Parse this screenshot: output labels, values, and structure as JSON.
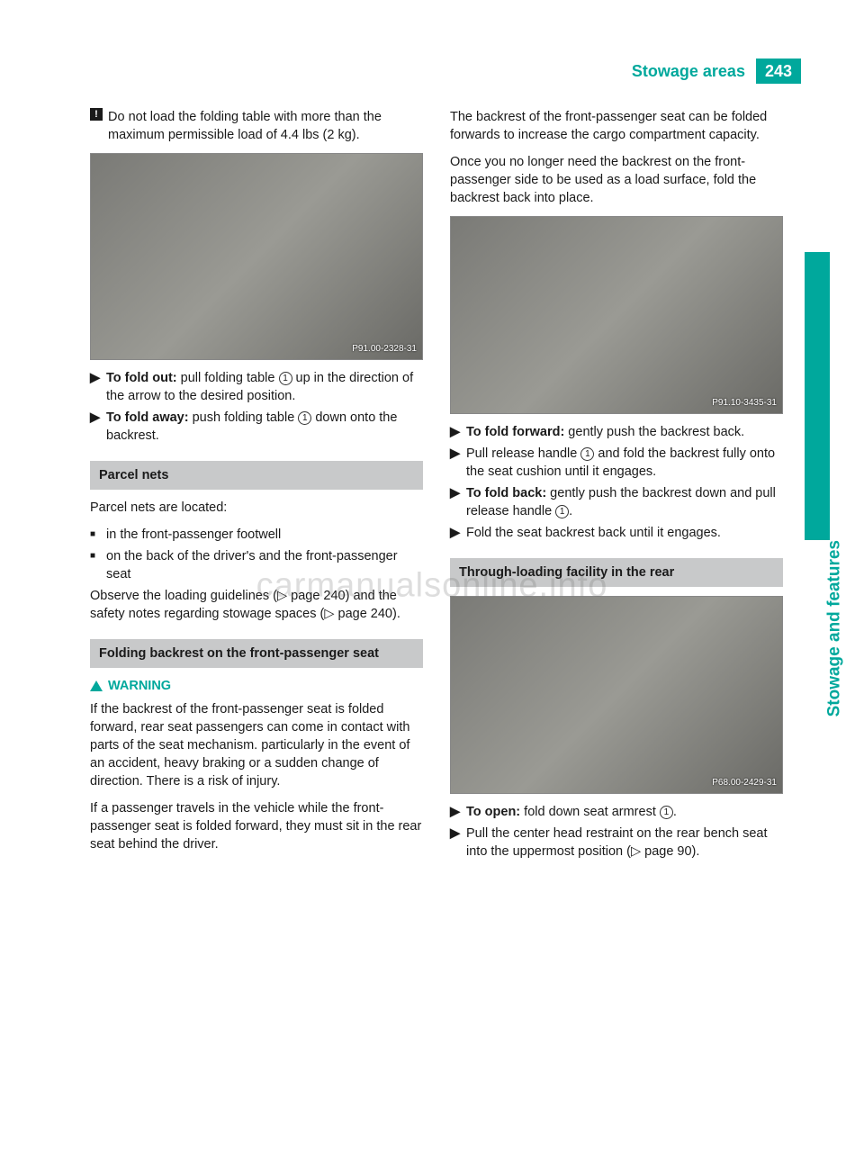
{
  "header": {
    "title": "Stowage areas",
    "page_number": "243"
  },
  "side_label": "Stowage and features",
  "watermark": "carmanualsonline.info",
  "colors": {
    "accent": "#00a89c",
    "section_bg": "#c8c9ca",
    "text": "#1a1a1a"
  },
  "left_column": {
    "caution_text": "Do not load the folding table with more than the maximum permissible load of 4.4 lbs (2 kg).",
    "img1_label": "P91.00-2328-31",
    "fold_out_bold": "To fold out:",
    "fold_out_text_a": " pull folding table ",
    "fold_out_text_b": " up in the direction of the arrow to the desired position.",
    "fold_away_bold": "To fold away:",
    "fold_away_text_a": " push folding table ",
    "fold_away_text_b": " down onto the backrest.",
    "section_parcel": "Parcel nets",
    "parcel_intro": "Parcel nets are located:",
    "parcel_b1": "in the front-passenger footwell",
    "parcel_b2": "on the back of the driver's and the front-passenger seat",
    "parcel_observe": "Observe the loading guidelines (▷ page 240) and the safety notes regarding stowage spaces (▷ page 240).",
    "section_folding": "Folding backrest on the front-passenger seat",
    "warning_label": "WARNING",
    "warning_p1": "If the backrest of the front-passenger seat is folded forward, rear seat passengers can come in contact with parts of the seat mechanism. particularly in the event of an accident, heavy braking or a sudden change of direction. There is a risk of injury.",
    "warning_p2": "If a passenger travels in the vehicle while the front-passenger seat is folded forward, they must sit in the rear seat behind the driver."
  },
  "right_column": {
    "intro_p1": "The backrest of the front-passenger seat can be folded forwards to increase the cargo compartment capacity.",
    "intro_p2": "Once you no longer need the backrest on the front-passenger side to be used as a load surface, fold the backrest back into place.",
    "img2_label": "P91.10-3435-31",
    "fold_fwd_bold": "To fold forward:",
    "fold_fwd_text": " gently push the backrest back.",
    "pull_text_a": "Pull release handle ",
    "pull_text_b": " and fold the backrest fully onto the seat cushion until it engages.",
    "fold_back_bold": "To fold back:",
    "fold_back_text_a": " gently push the backrest down and pull release handle ",
    "fold_back_text_b": ".",
    "fold_seat_text": "Fold the seat backrest back until it engages.",
    "section_through": "Through-loading facility in the rear",
    "img3_label": "P68.00-2429-31",
    "open_bold": "To open:",
    "open_text_a": " fold down seat armrest ",
    "open_text_b": ".",
    "pull_center_text": "Pull the center head restraint on the rear bench seat into the uppermost position (▷ page 90)."
  }
}
